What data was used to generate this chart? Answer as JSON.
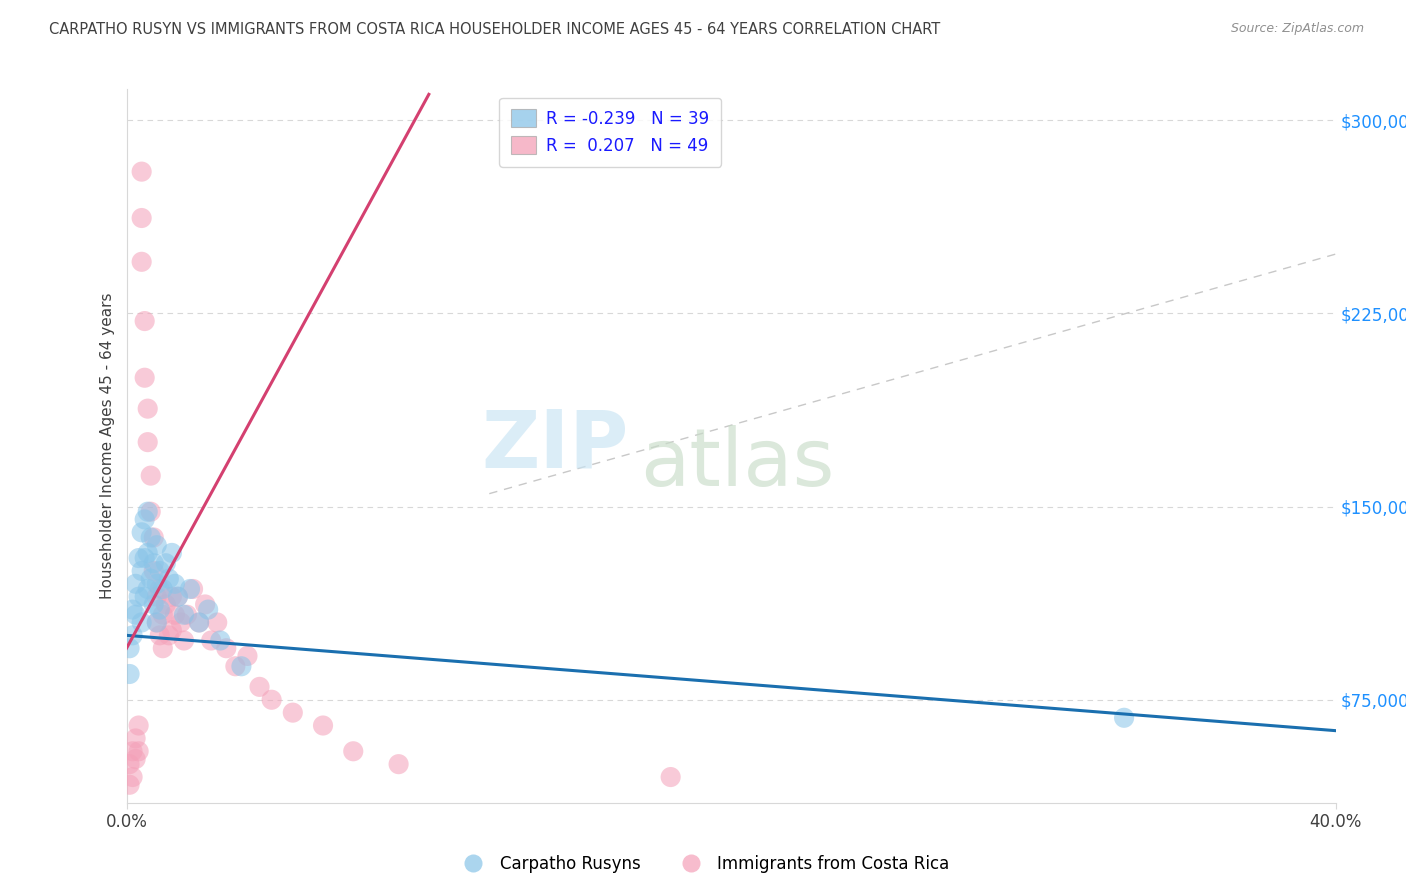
{
  "title": "CARPATHO RUSYN VS IMMIGRANTS FROM COSTA RICA HOUSEHOLDER INCOME AGES 45 - 64 YEARS CORRELATION CHART",
  "source": "Source: ZipAtlas.com",
  "ylabel": "Householder Income Ages 45 - 64 years",
  "y_ticks": [
    75000,
    150000,
    225000,
    300000
  ],
  "y_tick_labels": [
    "$75,000",
    "$150,000",
    "$225,000",
    "$300,000"
  ],
  "legend_blue_label": "Carpatho Rusyns",
  "legend_pink_label": "Immigrants from Costa Rica",
  "legend_blue_R": "-0.239",
  "legend_blue_N": "39",
  "legend_pink_R": " 0.207",
  "legend_pink_N": "49",
  "blue_color": "#88c4e8",
  "pink_color": "#f4a0b8",
  "blue_line_color": "#1a6faf",
  "pink_line_color": "#d44070",
  "dash_line_color": "#c8c8c8",
  "background_color": "#ffffff",
  "title_color": "#404040",
  "source_color": "#909090",
  "grid_color": "#d8d8d8",
  "blue_scatter_x": [
    0.001,
    0.001,
    0.002,
    0.002,
    0.003,
    0.003,
    0.004,
    0.004,
    0.005,
    0.005,
    0.005,
    0.006,
    0.006,
    0.006,
    0.007,
    0.007,
    0.007,
    0.008,
    0.008,
    0.009,
    0.009,
    0.01,
    0.01,
    0.01,
    0.011,
    0.011,
    0.012,
    0.013,
    0.014,
    0.015,
    0.016,
    0.017,
    0.019,
    0.021,
    0.024,
    0.027,
    0.031,
    0.038,
    0.33
  ],
  "blue_scatter_y": [
    95000,
    85000,
    110000,
    100000,
    120000,
    108000,
    130000,
    115000,
    140000,
    125000,
    105000,
    145000,
    130000,
    115000,
    148000,
    132000,
    118000,
    138000,
    122000,
    128000,
    112000,
    135000,
    120000,
    105000,
    125000,
    110000,
    118000,
    128000,
    122000,
    132000,
    120000,
    115000,
    108000,
    118000,
    105000,
    110000,
    98000,
    88000,
    68000
  ],
  "pink_scatter_x": [
    0.001,
    0.001,
    0.002,
    0.002,
    0.003,
    0.003,
    0.004,
    0.004,
    0.005,
    0.005,
    0.005,
    0.006,
    0.006,
    0.007,
    0.007,
    0.008,
    0.008,
    0.009,
    0.009,
    0.01,
    0.01,
    0.011,
    0.011,
    0.012,
    0.012,
    0.013,
    0.014,
    0.015,
    0.015,
    0.016,
    0.017,
    0.018,
    0.019,
    0.02,
    0.022,
    0.024,
    0.026,
    0.028,
    0.03,
    0.033,
    0.036,
    0.04,
    0.044,
    0.048,
    0.055,
    0.065,
    0.075,
    0.09,
    0.18
  ],
  "pink_scatter_y": [
    50000,
    42000,
    55000,
    45000,
    60000,
    52000,
    65000,
    55000,
    280000,
    262000,
    245000,
    222000,
    200000,
    188000,
    175000,
    162000,
    148000,
    138000,
    125000,
    115000,
    105000,
    118000,
    100000,
    108000,
    95000,
    112000,
    100000,
    115000,
    102000,
    108000,
    115000,
    105000,
    98000,
    108000,
    118000,
    105000,
    112000,
    98000,
    105000,
    95000,
    88000,
    92000,
    80000,
    75000,
    70000,
    65000,
    55000,
    50000,
    45000
  ],
  "xlim": [
    0.0,
    0.4
  ],
  "ylim": [
    35000,
    312000
  ],
  "blue_trendline": [
    0.0,
    100000,
    0.4,
    63000
  ],
  "pink_trendline": [
    0.0,
    95000,
    0.1,
    310000
  ],
  "dash_trendline": [
    0.12,
    155000,
    0.4,
    248000
  ]
}
